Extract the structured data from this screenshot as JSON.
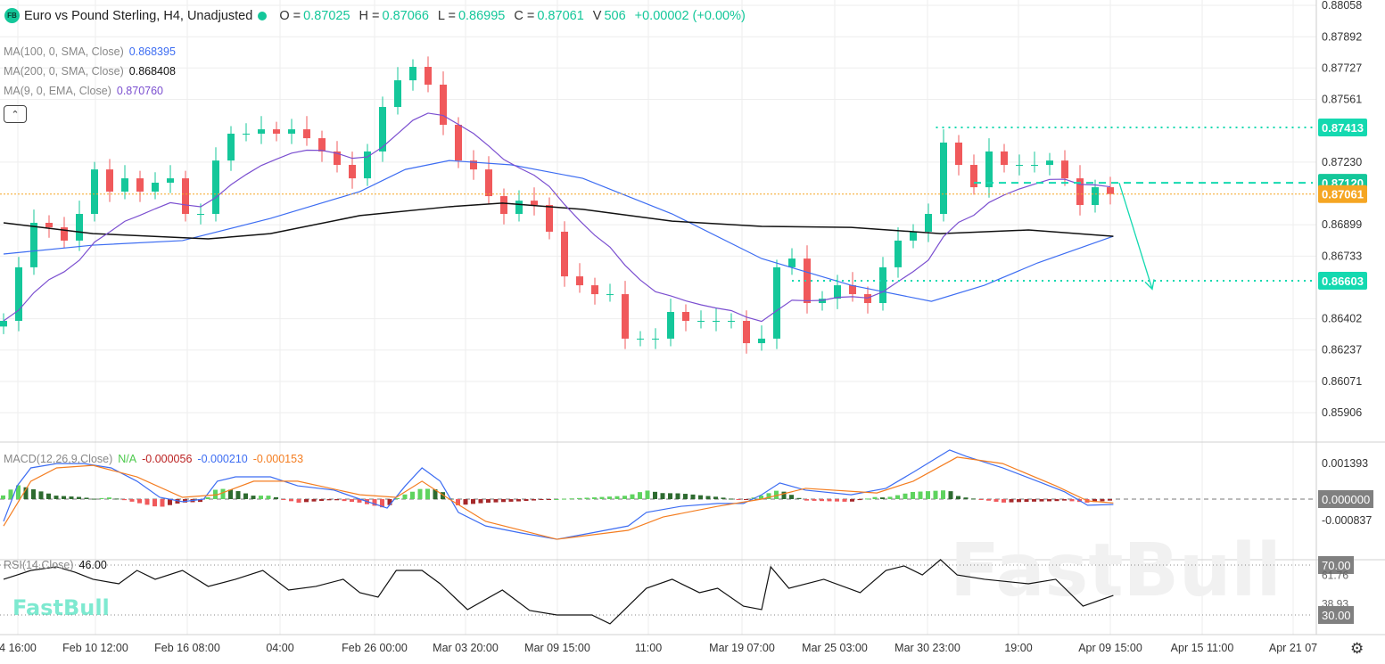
{
  "header": {
    "logo": "FB",
    "title": "Euro vs Pound Sterling, H4, Unadjusted",
    "status_color": "#14c79a",
    "ohlc": [
      {
        "k": "O =",
        "v": "0.87025"
      },
      {
        "k": "H =",
        "v": "0.87066"
      },
      {
        "k": "L =",
        "v": "0.86995"
      },
      {
        "k": "C =",
        "v": "0.87061"
      },
      {
        "k": "V",
        "v": "506"
      }
    ],
    "change": "+0.00002 (+0.00%)"
  },
  "indicators": [
    {
      "label": "MA(100, 0, SMA, Close)",
      "value": "0.868395",
      "color": "#3d6df2"
    },
    {
      "label": "MA(200, 0, SMA, Close)",
      "value": "0.868408",
      "color": "#111111"
    },
    {
      "label": "MA(9, 0, EMA, Close)",
      "value": "0.870760",
      "color": "#7b4fd0"
    }
  ],
  "collapse_icon": "chevron-up-icon",
  "macd_legend": {
    "label": "MACD(12,26,9,Close)",
    "na": "N/A",
    "hist": "-0.000056",
    "macd": "-0.000210",
    "signal": "-0.000153"
  },
  "rsi_legend": {
    "label": "RSI(14,Close)",
    "value": "46.00"
  },
  "watermark": "FastBull",
  "colors": {
    "up": "#14c79a",
    "down": "#f0595b",
    "ma100": "#3d6df2",
    "ma200": "#111111",
    "ema9": "#7b4fd0",
    "macd": "#3d6df2",
    "signal": "#f47d20",
    "current": "#f5a623",
    "level": "#14d9b0"
  },
  "chart_data": {
    "type": "candlestick",
    "price_ticks": [
      "0.88058",
      "0.87892",
      "0.87727",
      "0.87561",
      "0.87230",
      "0.86899",
      "0.86733",
      "0.86402",
      "0.86237",
      "0.86071",
      "0.85906"
    ],
    "price_labels": [
      {
        "text": "0.87413",
        "value": 0.87413,
        "color": "#14d9b0"
      },
      {
        "text": "0.87120",
        "value": 0.8712,
        "color": "#14c79a"
      },
      {
        "text": "0.87061",
        "value": 0.87061,
        "color": "#f5a623"
      },
      {
        "text": "0.86603",
        "value": 0.86603,
        "color": "#14d9b0"
      }
    ],
    "time_labels": [
      "4 16:00",
      "Feb 10 12:00",
      "Feb 16 08:00",
      "04:00",
      "Feb 26 00:00",
      "Mar 03 20:00",
      "Mar 09 15:00",
      "11:00",
      "Mar 19 07:00",
      "Mar 25 03:00",
      "Mar 30 23:00",
      "19:00",
      "Apr 09 15:00",
      "Apr 15 11:00",
      "Apr 21 07"
    ],
    "closes": [
      0.86391,
      0.86674,
      0.86909,
      0.86885,
      0.86815,
      0.86956,
      0.87191,
      0.87074,
      0.87144,
      0.87074,
      0.87121,
      0.87144,
      0.86956,
      0.86956,
      0.87238,
      0.8738,
      0.8738,
      0.87403,
      0.8738,
      0.87403,
      0.87356,
      0.87286,
      0.87215,
      0.87144,
      0.87286,
      0.87521,
      0.87662,
      0.87733,
      0.87639,
      0.87427,
      0.87238,
      0.87191,
      0.8705,
      0.86956,
      0.87026,
      0.87003,
      0.86862,
      0.86626,
      0.86579,
      0.86532,
      0.86532,
      0.86297,
      0.86297,
      0.86297,
      0.86438,
      0.86391,
      0.86391,
      0.86391,
      0.86391,
      0.86273,
      0.86297,
      0.86674,
      0.8672,
      0.86485,
      0.86508,
      0.86579,
      0.86532,
      0.86485,
      0.86674,
      0.86815,
      0.86862,
      0.86956,
      0.87333,
      0.87215,
      0.87097,
      0.87286,
      0.87215,
      0.87215,
      0.87215,
      0.87238,
      0.87144,
      0.87003,
      0.87097,
      0.87061
    ],
    "ma100": [
      [
        0,
        0.86744
      ],
      [
        5.9,
        0.86791
      ],
      [
        11.8,
        0.86815
      ],
      [
        17.6,
        0.86932
      ],
      [
        23.5,
        0.87074
      ],
      [
        26.5,
        0.87191
      ],
      [
        29.4,
        0.87238
      ],
      [
        33.5,
        0.87215
      ],
      [
        38.2,
        0.87144
      ],
      [
        44.1,
        0.86956
      ],
      [
        50,
        0.8672
      ],
      [
        55.9,
        0.86579
      ],
      [
        61.2,
        0.86494
      ],
      [
        64.7,
        0.86579
      ],
      [
        68.2,
        0.86697
      ],
      [
        73.2,
        0.86838
      ]
    ],
    "ma200": [
      [
        0,
        0.86909
      ],
      [
        5.9,
        0.86852
      ],
      [
        13.5,
        0.86824
      ],
      [
        17.6,
        0.86852
      ],
      [
        23.5,
        0.86947
      ],
      [
        29.4,
        0.86994
      ],
      [
        32.9,
        0.87013
      ],
      [
        38.2,
        0.8698
      ],
      [
        44.1,
        0.86918
      ],
      [
        50,
        0.8689
      ],
      [
        55.9,
        0.86885
      ],
      [
        61.8,
        0.86852
      ],
      [
        67.6,
        0.86871
      ],
      [
        73.2,
        0.86838
      ]
    ],
    "levels": [
      {
        "value": 0.87413,
        "from_bar": 61.5,
        "style": "dotted"
      },
      {
        "value": 0.8712,
        "from_bar": 64,
        "style": "dashed"
      },
      {
        "value": 0.86603,
        "from_bar": 52,
        "style": "dotted"
      }
    ],
    "forecast_arrow": {
      "from": [
        74,
        0.8712
      ],
      "to": [
        76,
        0.867
      ]
    },
    "macd_ticks": [
      "0.001393",
      "0.000000",
      "-0.000837"
    ],
    "macd": [
      [
        0,
        -0.00087
      ],
      [
        0.9,
        0.00052
      ],
      [
        1.8,
        0.00122
      ],
      [
        3.5,
        0.00139
      ],
      [
        5.3,
        0.00139
      ],
      [
        7.1,
        0.00122
      ],
      [
        8.8,
        0.0007
      ],
      [
        10.3,
        7e-05
      ],
      [
        11.8,
        -0.0001
      ],
      [
        13.2,
        0
      ],
      [
        14.1,
        0.0007
      ],
      [
        15.3,
        0.00087
      ],
      [
        17.6,
        0.00087
      ],
      [
        19.4,
        0.00052
      ],
      [
        21.8,
        0.00035
      ],
      [
        23.5,
        0
      ],
      [
        25.3,
        -0.00035
      ],
      [
        26.5,
        0.00052
      ],
      [
        27.6,
        0.00122
      ],
      [
        28.8,
        0.0007
      ],
      [
        30,
        -0.00052
      ],
      [
        31.8,
        -0.00105
      ],
      [
        34.1,
        -0.00132
      ],
      [
        36.5,
        -0.00157
      ],
      [
        38.8,
        -0.00132
      ],
      [
        41.2,
        -0.00105
      ],
      [
        42.4,
        -0.00052
      ],
      [
        44.7,
        -0.00028
      ],
      [
        47.1,
        -0.00017
      ],
      [
        48.8,
        -0.00017
      ],
      [
        50,
        0.00017
      ],
      [
        51.2,
        0.00063
      ],
      [
        52.9,
        0.00035
      ],
      [
        55.9,
        0.00017
      ],
      [
        58.2,
        0.00042
      ],
      [
        60,
        0.00105
      ],
      [
        62.4,
        0.00192
      ],
      [
        63.5,
        0.00167
      ],
      [
        65.9,
        0.00122
      ],
      [
        68.2,
        0.0007
      ],
      [
        70,
        0.00028
      ],
      [
        71.5,
        -0.00024
      ],
      [
        73.2,
        -0.00021
      ]
    ],
    "signal": [
      [
        0,
        -0.00105
      ],
      [
        1.8,
        0.0007
      ],
      [
        3.5,
        0.00122
      ],
      [
        5.9,
        0.00132
      ],
      [
        8.8,
        0.00087
      ],
      [
        11.8,
        7e-05
      ],
      [
        14.1,
        0.00017
      ],
      [
        16.5,
        0.0007
      ],
      [
        19.4,
        0.0007
      ],
      [
        23.5,
        0.00017
      ],
      [
        25.9,
        7e-05
      ],
      [
        27.6,
        0.0007
      ],
      [
        29.4,
        0
      ],
      [
        31.8,
        -0.00087
      ],
      [
        36.5,
        -0.00157
      ],
      [
        41.2,
        -0.00122
      ],
      [
        43.5,
        -0.0007
      ],
      [
        47.1,
        -0.00028
      ],
      [
        50,
        0
      ],
      [
        52.9,
        0.00042
      ],
      [
        57.6,
        0.00024
      ],
      [
        60,
        0.0007
      ],
      [
        62.9,
        0.00164
      ],
      [
        65.9,
        0.00139
      ],
      [
        69.4,
        0.00052
      ],
      [
        71.5,
        -7e-05
      ],
      [
        73.2,
        -0.00015
      ]
    ],
    "rsi_ticks": [
      {
        "text": "70.00",
        "value": 70,
        "boxed": true
      },
      {
        "text": "61.76",
        "value": 61.76,
        "boxed": false
      },
      {
        "text": "38.93",
        "value": 38.93,
        "boxed": false
      },
      {
        "text": "30.00",
        "value": 30,
        "boxed": true
      }
    ],
    "rsi": [
      [
        0,
        58.6
      ],
      [
        0.9,
        62.1
      ],
      [
        1.8,
        65.7
      ],
      [
        3.5,
        68.6
      ],
      [
        4.7,
        64.3
      ],
      [
        5.9,
        58.6
      ],
      [
        7.6,
        55
      ],
      [
        8.8,
        65.7
      ],
      [
        10,
        58.6
      ],
      [
        11.8,
        65.7
      ],
      [
        13.5,
        52.9
      ],
      [
        15.3,
        58.6
      ],
      [
        17.1,
        65.7
      ],
      [
        18.8,
        50
      ],
      [
        20.6,
        52.9
      ],
      [
        22.4,
        58.6
      ],
      [
        23.5,
        47.9
      ],
      [
        24.7,
        44.3
      ],
      [
        25.9,
        65.7
      ],
      [
        27.6,
        65.7
      ],
      [
        28.8,
        55
      ],
      [
        30.6,
        34.3
      ],
      [
        32.9,
        50
      ],
      [
        34.7,
        33.6
      ],
      [
        36.5,
        30
      ],
      [
        38.8,
        30
      ],
      [
        40,
        22.9
      ],
      [
        41.2,
        37.1
      ],
      [
        42.4,
        51.4
      ],
      [
        44.1,
        58.6
      ],
      [
        45.9,
        47.9
      ],
      [
        47.1,
        51.4
      ],
      [
        48.8,
        37.1
      ],
      [
        50,
        34.3
      ],
      [
        50.6,
        68.6
      ],
      [
        51.8,
        51.4
      ],
      [
        54.1,
        58.6
      ],
      [
        56.5,
        47.9
      ],
      [
        58.2,
        65.7
      ],
      [
        59.4,
        69.3
      ],
      [
        60.6,
        62.1
      ],
      [
        61.8,
        74.3
      ],
      [
        62.9,
        62.1
      ],
      [
        64.7,
        58.6
      ],
      [
        67.6,
        55
      ],
      [
        69.4,
        58.6
      ],
      [
        71.2,
        37.1
      ],
      [
        73.2,
        45.7
      ]
    ]
  }
}
